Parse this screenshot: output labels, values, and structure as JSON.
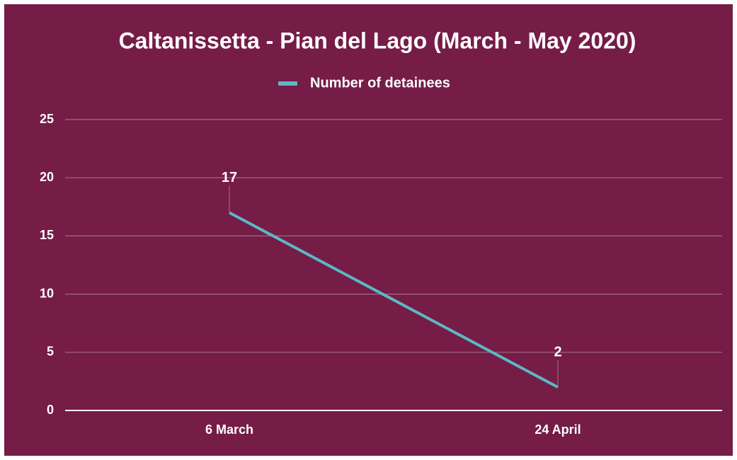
{
  "chart_data": {
    "type": "line",
    "title": "Caltanissetta - Pian del Lago (March - May 2020)",
    "categories": [
      "6 March",
      "24 April"
    ],
    "series": [
      {
        "name": "Number of detainees",
        "color": "#5bb8c4",
        "values": [
          17,
          2
        ]
      }
    ],
    "ylim": [
      0,
      25
    ],
    "yticks": [
      0,
      5,
      10,
      15,
      20,
      25
    ],
    "grid": true,
    "legend": "top",
    "background": "#751c47"
  }
}
